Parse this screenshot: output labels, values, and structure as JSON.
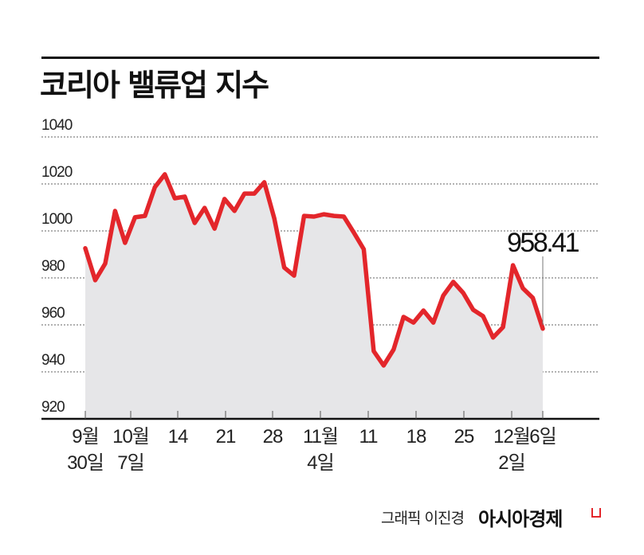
{
  "header": {
    "title": "코리아 밸류업 지수"
  },
  "footer": {
    "credit": "그래픽 이진경",
    "brand": "아시아경제"
  },
  "colors": {
    "line": "#e3262b",
    "fill": "#e6e6e8",
    "grid": "#666666",
    "text": "#111111"
  },
  "annotation": {
    "label": "958.41"
  },
  "chart_data": {
    "type": "line",
    "title": "코리아 밸류업 지수",
    "xlabel": "",
    "ylabel": "",
    "ylim": [
      920,
      1040
    ],
    "yticks": [
      920,
      940,
      960,
      980,
      1000,
      1020,
      1040
    ],
    "grid": true,
    "x_ticks": [
      {
        "line1": "9월",
        "line2": "30일"
      },
      {
        "line1": "10월",
        "line2": "7일"
      },
      {
        "line1": "14",
        "line2": ""
      },
      {
        "line1": "21",
        "line2": ""
      },
      {
        "line1": "28",
        "line2": ""
      },
      {
        "line1": "11월",
        "line2": "4일"
      },
      {
        "line1": "11",
        "line2": ""
      },
      {
        "line1": "18",
        "line2": ""
      },
      {
        "line1": "25",
        "line2": ""
      },
      {
        "line1": "12월",
        "line2": "2일"
      },
      {
        "line1": "6일",
        "line2": ""
      }
    ],
    "series": [
      {
        "name": "코리아 밸류업 지수",
        "values": [
          992.6,
          979.0,
          986.1,
          1008.5,
          994.9,
          1005.8,
          1006.4,
          1018.6,
          1024.1,
          1013.9,
          1014.6,
          1003.4,
          1009.8,
          1001.0,
          1013.6,
          1008.5,
          1015.9,
          1015.9,
          1020.7,
          1005.4,
          984.4,
          981.0,
          1006.4,
          1006.1,
          1007.1,
          1006.4,
          1006.1,
          999.3,
          992.2,
          948.8,
          942.7,
          949.5,
          963.4,
          961.0,
          966.1,
          961.0,
          972.5,
          978.3,
          973.6,
          966.4,
          963.7,
          954.6,
          959.0,
          985.4,
          975.6,
          971.5,
          958.41
        ]
      }
    ],
    "annotations": [
      {
        "text": "958.41",
        "x": "6일"
      }
    ]
  }
}
